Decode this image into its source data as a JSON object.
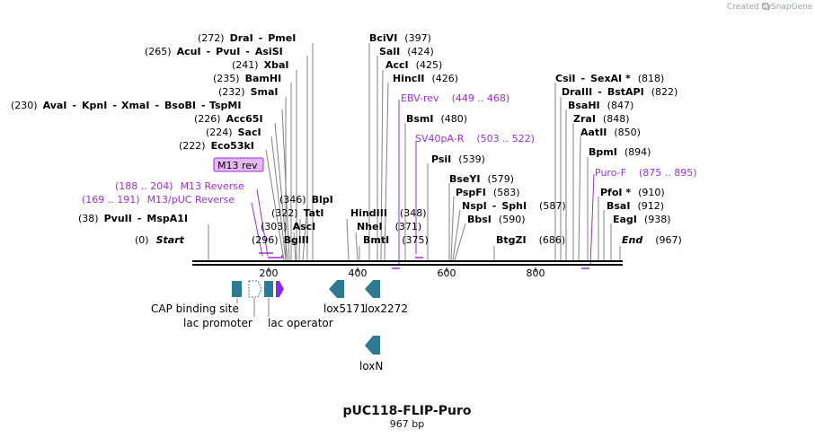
{
  "credit": {
    "prefix": "Created by",
    "brand": "SnapGene"
  },
  "plasmid": {
    "name": "pUC118-FLIP-Puro",
    "size": "967 bp"
  },
  "axis": {
    "ticks": [
      "200",
      "400",
      "600",
      "800"
    ]
  },
  "enzymes": [
    {
      "name": "DraI",
      "pos": "(272)",
      "name2": "PmeI"
    },
    {
      "name": "AcuI",
      "pos": "(265)",
      "name2": "PvuI",
      "name3": "AsiSI"
    },
    {
      "name": "XbaI",
      "pos": "(241)"
    },
    {
      "name": "BamHI",
      "pos": "(235)"
    },
    {
      "name": "SmaI",
      "pos": "(232)"
    },
    {
      "name": "AvaI",
      "pos": "(230)",
      "name2": "KpnI",
      "name3": "XmaI",
      "name4": "BsoBI",
      "name5": "TspMI"
    },
    {
      "name": "Acc65I",
      "pos": "(226)"
    },
    {
      "name": "SacI",
      "pos": "(224)"
    },
    {
      "name": "Eco53kI",
      "pos": "(222)"
    },
    {
      "name": "BlpI",
      "pos": "(346)"
    },
    {
      "name": "TatI",
      "pos": "(322)"
    },
    {
      "name": "AscI",
      "pos": "(303)"
    },
    {
      "name": "BglII",
      "pos": "(296)"
    },
    {
      "name": "PvuII",
      "pos": "(38)",
      "name2": "MspA1I"
    },
    {
      "name": "Start",
      "pos": "(0)"
    },
    {
      "name": "BciVI",
      "pos": "(397)"
    },
    {
      "name": "SalI",
      "pos": "(424)"
    },
    {
      "name": "AccI",
      "pos": "(425)"
    },
    {
      "name": "HincII",
      "pos": "(426)"
    },
    {
      "name": "BsmI",
      "pos": "(480)"
    },
    {
      "name": "PsiI",
      "pos": "(539)"
    },
    {
      "name": "BseYI",
      "pos": "(579)"
    },
    {
      "name": "PspFI",
      "pos": "(583)"
    },
    {
      "name": "NspI",
      "pos": "(587)",
      "name2": "SphI"
    },
    {
      "name": "BbsI",
      "pos": "(590)"
    },
    {
      "name": "HindIII",
      "pos": "(348)"
    },
    {
      "name": "NheI",
      "pos": "(371)"
    },
    {
      "name": "BmtI",
      "pos": "(375)"
    },
    {
      "name": "BtgZI",
      "pos": "(686)"
    },
    {
      "name": "CsiI",
      "pos": "(818)",
      "name2": "SexAI *"
    },
    {
      "name": "DraIII",
      "pos": "(822)",
      "name2": "BstAPI"
    },
    {
      "name": "BsaHI",
      "pos": "(847)"
    },
    {
      "name": "ZraI",
      "pos": "(848)"
    },
    {
      "name": "AatII",
      "pos": "(850)"
    },
    {
      "name": "BpmI",
      "pos": "(894)"
    },
    {
      "name": "PfoI *",
      "pos": "(910)"
    },
    {
      "name": "BsaI",
      "pos": "(912)"
    },
    {
      "name": "EagI",
      "pos": "(938)"
    },
    {
      "name": "End",
      "pos": "(967)"
    }
  ],
  "primers": [
    {
      "name": "M13 rev"
    },
    {
      "name": "M13 Reverse",
      "range": "(188 .. 204)"
    },
    {
      "name": "M13/pUC Reverse",
      "range": "(169 .. 191)"
    },
    {
      "name": "EBV-rev",
      "range": "(449 .. 468)"
    },
    {
      "name": "SV40pA-R",
      "range": "(503 .. 522)"
    },
    {
      "name": "Puro-F",
      "range": "(875 .. 895)"
    }
  ],
  "features": [
    {
      "name": "CAP binding site"
    },
    {
      "name": "lac promoter"
    },
    {
      "name": "lac operator"
    },
    {
      "name": "lox5171"
    },
    {
      "name": "lox2272"
    },
    {
      "name": "loxN"
    }
  ],
  "colors": {
    "feature": "#2e7a92",
    "primer": "#9b30d0",
    "primerFill": "#e6b8f2",
    "operator": "#8a2be2"
  }
}
